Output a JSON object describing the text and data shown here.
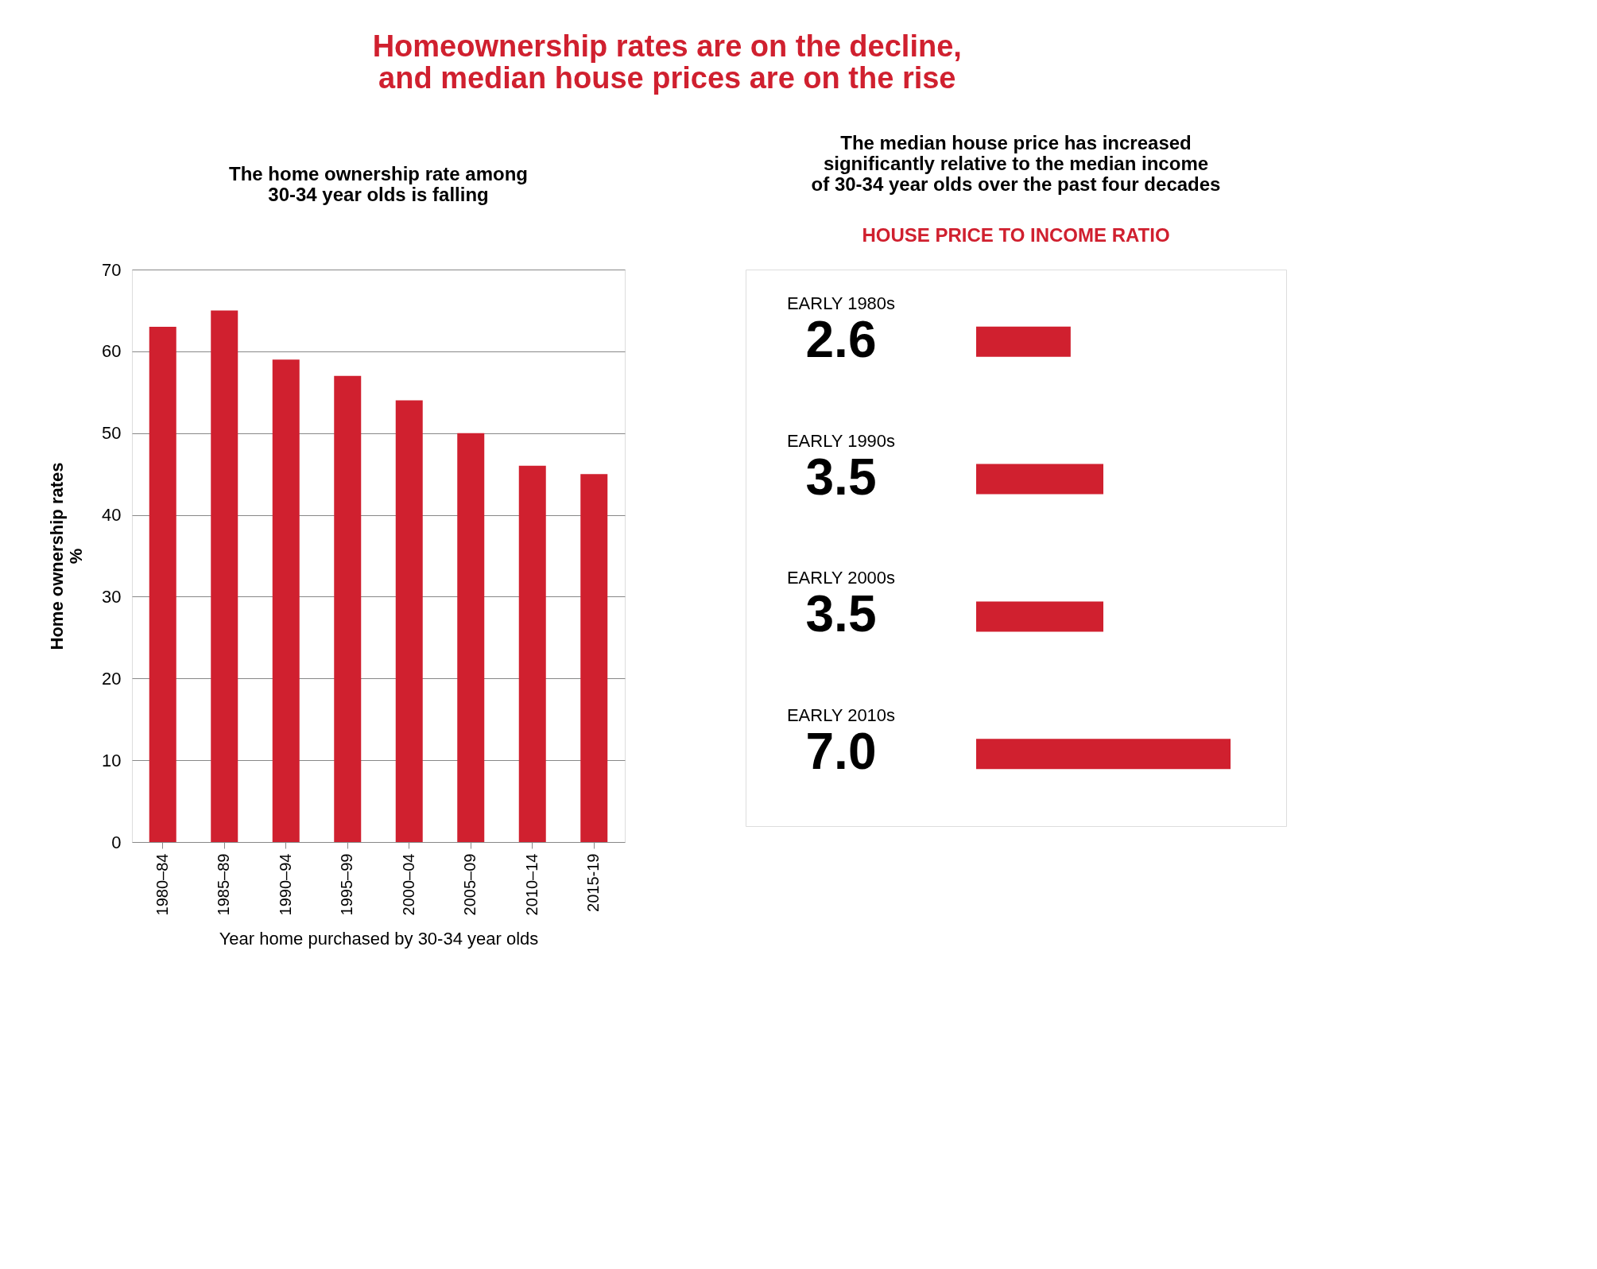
{
  "chart_data": [
    {
      "type": "bar",
      "title": "The home ownership rate among\n30-34 year olds is falling",
      "xlabel": "Year home purchased by 30-34 year olds",
      "ylabel": "Home ownership rates\n%",
      "annotations": [
        "Homeownership rates are on the decline,\nand median house prices are on the rise"
      ],
      "categories": [
        "1980–84",
        "1985–89",
        "1990–94",
        "1995–99",
        "2000–04",
        "2005–09",
        "2010–14",
        "2015-19"
      ],
      "values": [
        63,
        65,
        59,
        57,
        54,
        50,
        46,
        45
      ],
      "color": "#d0202f",
      "ylim": [
        0,
        70
      ],
      "yticks": [
        0,
        10,
        20,
        30,
        40,
        50,
        60,
        70
      ],
      "grid": "y"
    },
    {
      "type": "bar",
      "orientation": "horizontal",
      "title": "The median house price has increased\nsignificantly relative to the median income\nof 30-34 year olds over the past four decades",
      "subtitle": "HOUSE PRICE TO INCOME RATIO",
      "categories": [
        "EARLY 1980s",
        "EARLY 1990s",
        "EARLY 2000s",
        "EARLY 2010s"
      ],
      "values": [
        2.6,
        3.5,
        3.5,
        7.0
      ],
      "value_labels": [
        "2.6",
        "3.5",
        "3.5",
        "7.0"
      ],
      "color": "#d0202f"
    }
  ]
}
